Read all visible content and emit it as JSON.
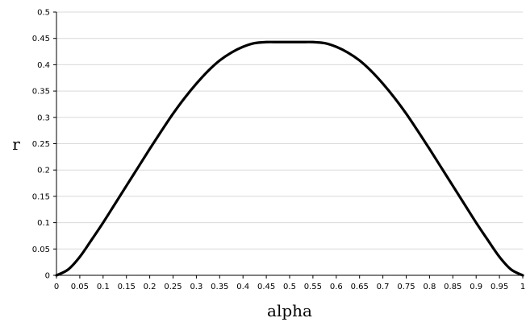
{
  "chart_data": {
    "type": "line",
    "title": "",
    "xlabel": "alpha",
    "ylabel": "r",
    "xlim": [
      0,
      1
    ],
    "ylim": [
      0,
      0.5
    ],
    "grid": true,
    "x_ticks": [
      "0",
      "0.05",
      "0.1",
      "0.15",
      "0.2",
      "0.25",
      "0.3",
      "0.35",
      "0.4",
      "0.45",
      "0.5",
      "0.55",
      "0.6",
      "0.65",
      "0.7",
      "0.75",
      "0.8",
      "0.85",
      "0.9",
      "0.95",
      "1"
    ],
    "y_ticks": [
      "0",
      "0.05",
      "0.1",
      "0.15",
      "0.2",
      "0.25",
      "0.3",
      "0.35",
      "0.4",
      "0.45",
      "0.5"
    ],
    "series": [
      {
        "name": "",
        "x": [
          0,
          0.025,
          0.05,
          0.075,
          0.1,
          0.125,
          0.15,
          0.175,
          0.2,
          0.225,
          0.25,
          0.275,
          0.3,
          0.325,
          0.35,
          0.375,
          0.4,
          0.425,
          0.45,
          0.475,
          0.5,
          0.525,
          0.55,
          0.575,
          0.6,
          0.625,
          0.65,
          0.675,
          0.7,
          0.725,
          0.75,
          0.775,
          0.8,
          0.825,
          0.85,
          0.875,
          0.9,
          0.925,
          0.95,
          0.975,
          1
        ],
        "y": [
          0,
          0.011,
          0.035,
          0.067,
          0.1,
          0.135,
          0.17,
          0.205,
          0.24,
          0.274,
          0.307,
          0.337,
          0.364,
          0.388,
          0.408,
          0.423,
          0.434,
          0.441,
          0.443,
          0.443,
          0.443,
          0.443,
          0.443,
          0.441,
          0.434,
          0.423,
          0.408,
          0.388,
          0.364,
          0.337,
          0.307,
          0.274,
          0.24,
          0.205,
          0.17,
          0.135,
          0.1,
          0.067,
          0.035,
          0.011,
          0
        ]
      }
    ]
  }
}
